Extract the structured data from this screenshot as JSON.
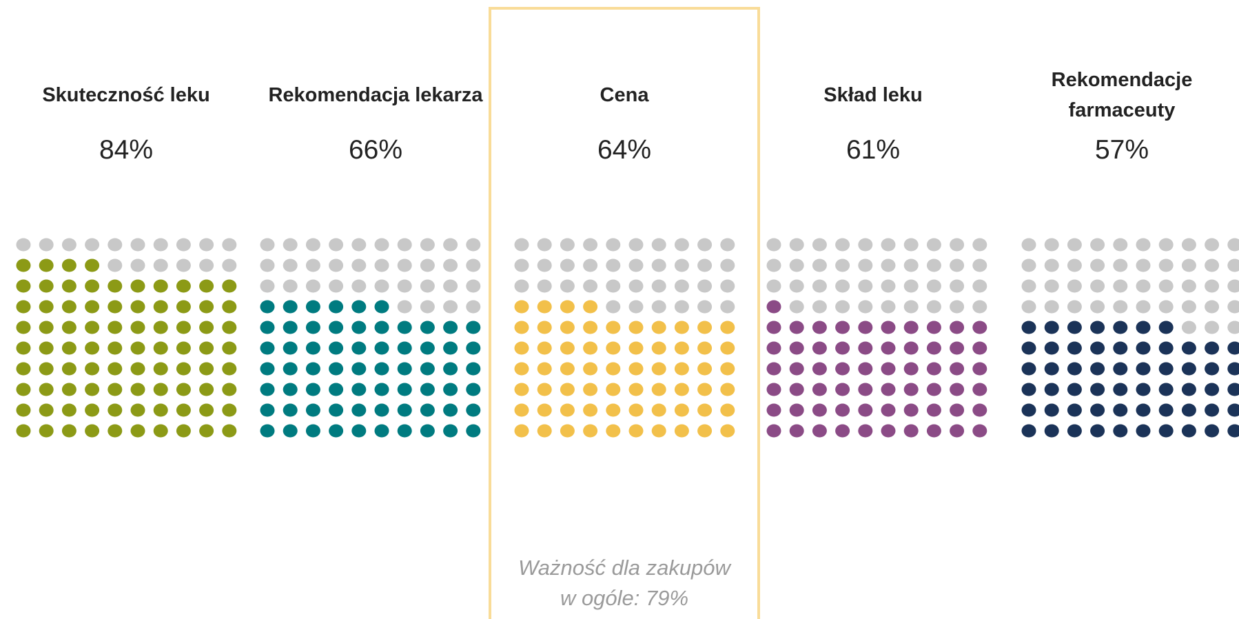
{
  "chart_data": {
    "type": "waffle",
    "categories": [
      "Skuteczność leku",
      "Rekomendacja lekarza",
      "Cena",
      "Skład leku",
      "Rekomendacje farmaceuty"
    ],
    "values": [
      84,
      66,
      64,
      61,
      57
    ],
    "value_labels": [
      "84%",
      "66%",
      "64%",
      "61%",
      "57%"
    ],
    "colors": [
      "#8c9a16",
      "#007b80",
      "#f2c04a",
      "#8b4b86",
      "#1b3358"
    ],
    "empty_color": "#c8c8c8",
    "highlight": 2,
    "annotation": [
      "Ważność dla zakupów",
      "w ogóle: 79%"
    ]
  }
}
